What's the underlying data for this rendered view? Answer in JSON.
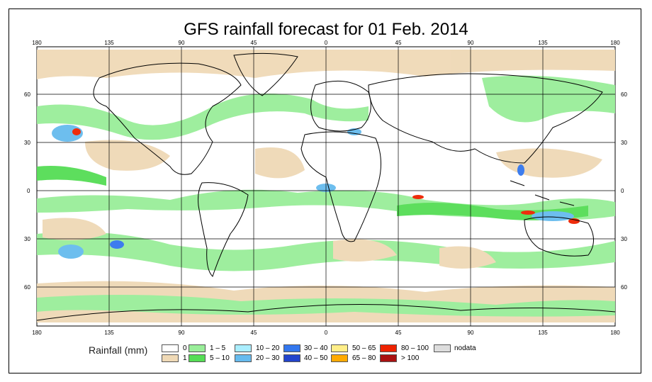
{
  "title": "GFS rainfall forecast for 01 Feb. 2014",
  "map": {
    "lon_labels": [
      "180",
      "135",
      "90",
      "45",
      "0",
      "45",
      "90",
      "135",
      "180"
    ],
    "lat_labels": [
      "60",
      "30",
      "0",
      "30",
      "60"
    ],
    "ocean_color": "#ffffff",
    "land_outline_color": "#000000"
  },
  "legend": {
    "title": "Rainfall (mm)",
    "items": [
      {
        "label": "0",
        "color": "#ffffff"
      },
      {
        "label": "1",
        "color": "#efd9b6"
      },
      {
        "label": "1 – 5",
        "color": "#99ee99"
      },
      {
        "label": "5 – 10",
        "color": "#55dd55"
      },
      {
        "label": "10 – 20",
        "color": "#aaeeff"
      },
      {
        "label": "20 – 30",
        "color": "#66bbee"
      },
      {
        "label": "30 – 40",
        "color": "#3377ee"
      },
      {
        "label": "40 – 50",
        "color": "#2244cc"
      },
      {
        "label": "50 – 65",
        "color": "#ffee88"
      },
      {
        "label": "65 – 80",
        "color": "#ffaa00"
      },
      {
        "label": "80 – 100",
        "color": "#ee2200"
      },
      {
        "label": "> 100",
        "color": "#aa1111"
      },
      {
        "label": "nodata",
        "color": "#dddddd"
      }
    ]
  }
}
